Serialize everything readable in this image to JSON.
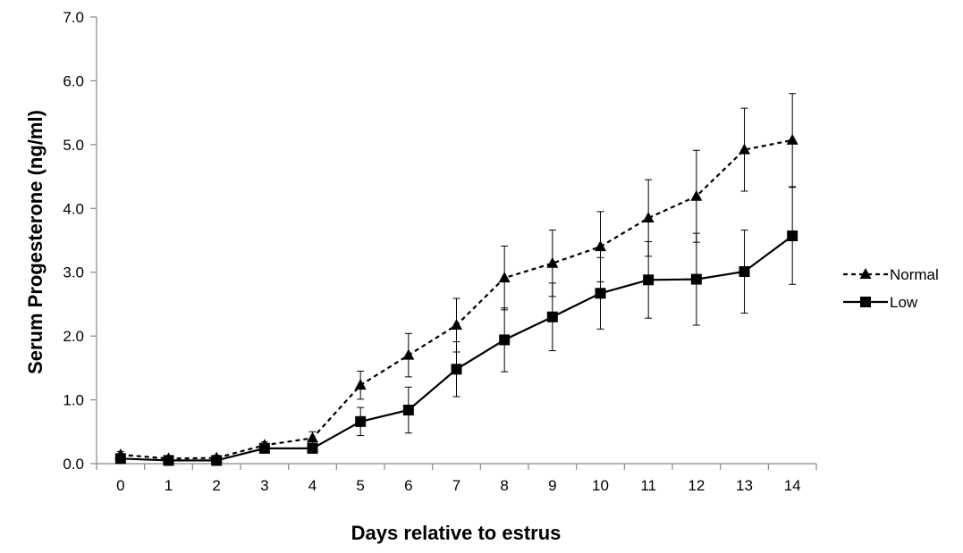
{
  "chart_data": {
    "type": "line",
    "title": "",
    "xlabel": "Days relative to estrus",
    "ylabel": "Serum Progesterone (ng/ml)",
    "x": [
      0,
      1,
      2,
      3,
      4,
      5,
      6,
      7,
      8,
      9,
      10,
      11,
      12,
      13,
      14
    ],
    "x_tick_labels": [
      "0",
      "1",
      "2",
      "3",
      "4",
      "5",
      "6",
      "7",
      "8",
      "9",
      "10",
      "11",
      "12",
      "13",
      "14"
    ],
    "ylim": [
      0,
      7
    ],
    "y_ticks": [
      0,
      1,
      2,
      3,
      4,
      5,
      6,
      7
    ],
    "y_tick_labels": [
      "0.0",
      "1.0",
      "2.0",
      "3.0",
      "4.0",
      "5.0",
      "6.0",
      "7.0"
    ],
    "grid": false,
    "legend_position": "right",
    "series": [
      {
        "name": "Normal",
        "marker": "triangle",
        "line_style": "dashed",
        "color": "#000000",
        "values": [
          0.14,
          0.08,
          0.09,
          0.29,
          0.4,
          1.23,
          1.7,
          2.17,
          2.91,
          3.14,
          3.4,
          3.85,
          4.19,
          4.92,
          5.07
        ],
        "errors": [
          0.05,
          0.04,
          0.04,
          0.05,
          0.1,
          0.22,
          0.34,
          0.42,
          0.5,
          0.52,
          0.55,
          0.6,
          0.72,
          0.65,
          0.73
        ]
      },
      {
        "name": "Low",
        "marker": "square",
        "line_style": "solid",
        "color": "#000000",
        "values": [
          0.08,
          0.05,
          0.05,
          0.24,
          0.24,
          0.66,
          0.84,
          1.48,
          1.94,
          2.3,
          2.67,
          2.88,
          2.89,
          3.01,
          3.57
        ],
        "errors": [
          0.04,
          0.03,
          0.03,
          0.04,
          0.04,
          0.22,
          0.36,
          0.43,
          0.5,
          0.53,
          0.56,
          0.6,
          0.72,
          0.65,
          0.76
        ]
      }
    ]
  }
}
